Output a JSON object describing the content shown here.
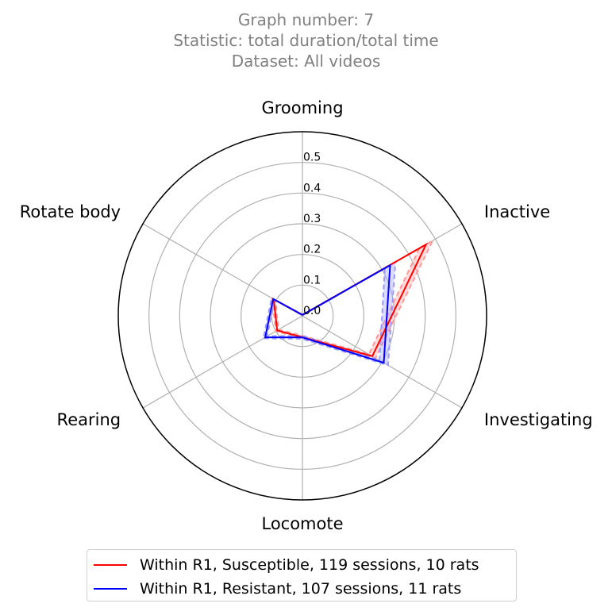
{
  "title_lines": [
    "Graph number: 7",
    "Statistic: total duration/total time",
    "Dataset: All videos"
  ],
  "chart_data": {
    "type": "radar",
    "categories": [
      "Grooming",
      "Inactive",
      "Investigating",
      "Locomote",
      "Rearing",
      "Rotate body"
    ],
    "rmax": 0.6,
    "radial_ticks": [
      0.0,
      0.1,
      0.2,
      0.3,
      0.4,
      0.5
    ],
    "radial_tick_labels": [
      "0.0",
      "0.1",
      "0.2",
      "0.3",
      "0.4",
      "0.5"
    ],
    "grid": true,
    "legend_position": "bottom-center",
    "series": [
      {
        "name": "Within R1, Susceptible, 119 sessions, 10 rats",
        "color": "#ff0000",
        "band_color": "#ff9999",
        "values": [
          0.003,
          0.465,
          0.263,
          0.07,
          0.095,
          0.108
        ],
        "lower": [
          0.002,
          0.44,
          0.25,
          0.065,
          0.09,
          0.102
        ],
        "upper": [
          0.004,
          0.49,
          0.275,
          0.075,
          0.1,
          0.114
        ]
      },
      {
        "name": "Within R1, Resistant, 107 sessions, 11 rats",
        "color": "#0000ff",
        "band_color": "#9999ff",
        "values": [
          0.003,
          0.33,
          0.306,
          0.07,
          0.14,
          0.11
        ],
        "lower": [
          0.002,
          0.31,
          0.29,
          0.065,
          0.133,
          0.104
        ],
        "upper": [
          0.004,
          0.35,
          0.322,
          0.075,
          0.147,
          0.116
        ]
      }
    ]
  }
}
